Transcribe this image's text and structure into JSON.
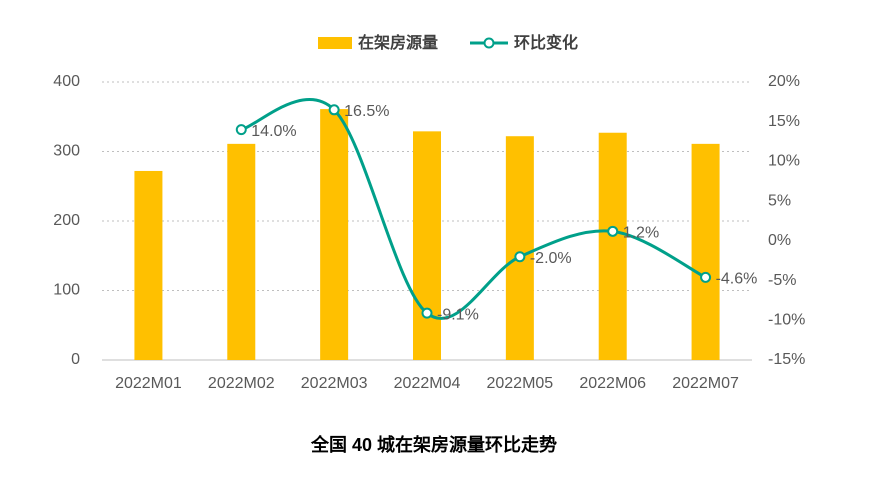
{
  "chart_data": {
    "type": "bar-line",
    "title": "全国 40 城在架房源量环比走势",
    "categories": [
      "2022M01",
      "2022M02",
      "2022M03",
      "2022M04",
      "2022M05",
      "2022M06",
      "2022M07"
    ],
    "series": [
      {
        "name": "在架房源量",
        "type": "bar",
        "color": "#FFC000",
        "values": [
          272,
          311,
          361,
          329,
          322,
          327,
          311
        ]
      },
      {
        "name": "环比变化",
        "type": "line",
        "axis": "y2",
        "color": "#00A08A",
        "smooth": true,
        "values": [
          null,
          14.0,
          16.5,
          -9.1,
          -2.0,
          1.2,
          -4.6
        ],
        "value_labels": [
          null,
          "14.0%",
          "16.5%",
          "-9.1%",
          "-2.0%",
          "1.2%",
          "-4.6%"
        ]
      }
    ],
    "ylim": [
      0,
      400
    ],
    "yticks": [
      0,
      100,
      200,
      300,
      400
    ],
    "y2lim": [
      -15,
      20
    ],
    "y2ticks": [
      {
        "value": -15,
        "label": "-15%"
      },
      {
        "value": -10,
        "label": "-10%"
      },
      {
        "value": -5,
        "label": "-5%"
      },
      {
        "value": 0,
        "label": "0%"
      },
      {
        "value": 5,
        "label": "5%"
      },
      {
        "value": 10,
        "label": "10%"
      },
      {
        "value": 15,
        "label": "15%"
      },
      {
        "value": 20,
        "label": "20%"
      }
    ],
    "grid": true,
    "legend": "top"
  }
}
